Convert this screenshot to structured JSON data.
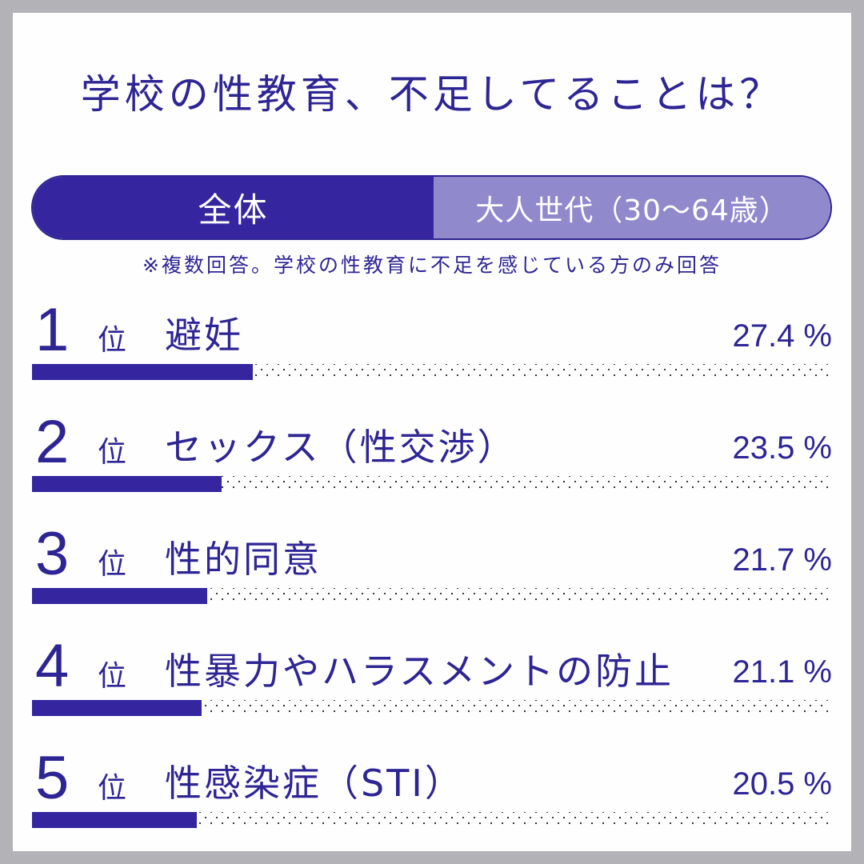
{
  "title": "学校の性教育、不足してることは？",
  "toggle": {
    "active_label": "全体",
    "inactive_label": "大人世代（30〜64歳）"
  },
  "note": "※複数回答。学校の性教育に不足を感じている方のみ回答",
  "rank_suffix": "位",
  "colors": {
    "primary": "#2e2594",
    "bar": "#3526a0",
    "toggle_active": "#3526a0",
    "toggle_inactive": "#9089cc",
    "frame": "#b3b2b6"
  },
  "rows": [
    {
      "rank": "1",
      "label": "避妊",
      "value_text": "27.4 %",
      "value": 27.4
    },
    {
      "rank": "2",
      "label": "セックス（性交渉）",
      "value_text": "23.5 %",
      "value": 23.5
    },
    {
      "rank": "3",
      "label": "性的同意",
      "value_text": "21.7 %",
      "value": 21.7
    },
    {
      "rank": "4",
      "label": "性暴力やハラスメントの防止",
      "value_text": "21.1 %",
      "value": 21.1
    },
    {
      "rank": "5",
      "label": "性感染症（STI）",
      "value_text": "20.5 %",
      "value": 20.5
    }
  ],
  "chart_data": {
    "type": "bar",
    "orientation": "horizontal",
    "title": "学校の性教育、不足してることは？",
    "subtitle": "※複数回答。学校の性教育に不足を感じている方のみ回答",
    "segment": "全体",
    "categories": [
      "避妊",
      "セックス（性交渉）",
      "性的同意",
      "性暴力やハラスメントの防止",
      "性感染症（STI）"
    ],
    "values": [
      27.4,
      23.5,
      21.7,
      21.1,
      20.5
    ],
    "unit": "%",
    "xlabel": "",
    "ylabel": "",
    "xlim": [
      0,
      100
    ],
    "grid": false,
    "legend": null
  }
}
